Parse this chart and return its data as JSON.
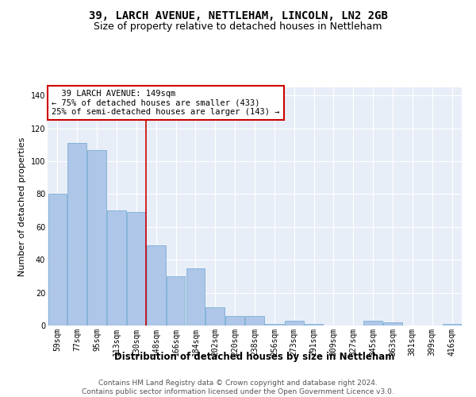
{
  "title": "39, LARCH AVENUE, NETTLEHAM, LINCOLN, LN2 2GB",
  "subtitle": "Size of property relative to detached houses in Nettleham",
  "xlabel": "Distribution of detached houses by size in Nettleham",
  "ylabel": "Number of detached properties",
  "categories": [
    "59sqm",
    "77sqm",
    "95sqm",
    "113sqm",
    "130sqm",
    "148sqm",
    "166sqm",
    "184sqm",
    "202sqm",
    "220sqm",
    "238sqm",
    "256sqm",
    "273sqm",
    "291sqm",
    "309sqm",
    "327sqm",
    "345sqm",
    "363sqm",
    "381sqm",
    "399sqm",
    "416sqm"
  ],
  "values": [
    80,
    111,
    107,
    70,
    69,
    49,
    30,
    35,
    11,
    6,
    6,
    1,
    3,
    1,
    0,
    0,
    3,
    2,
    0,
    0,
    1
  ],
  "bar_color": "#aec6e8",
  "bar_edge_color": "#7aafd4",
  "vline_x_index": 5,
  "vline_color": "#cc0000",
  "annotation_box_text": "  39 LARCH AVENUE: 149sqm\n← 75% of detached houses are smaller (433)\n25% of semi-detached houses are larger (143) →",
  "box_edge_color": "#cc0000",
  "ylim": [
    0,
    145
  ],
  "yticks": [
    0,
    20,
    40,
    60,
    80,
    100,
    120,
    140
  ],
  "background_color": "#e8eef8",
  "footer_text": "Contains HM Land Registry data © Crown copyright and database right 2024.\nContains public sector information licensed under the Open Government Licence v3.0.",
  "title_fontsize": 10,
  "subtitle_fontsize": 9,
  "xlabel_fontsize": 8.5,
  "ylabel_fontsize": 8,
  "tick_fontsize": 7,
  "annotation_fontsize": 7.5,
  "footer_fontsize": 6.5
}
